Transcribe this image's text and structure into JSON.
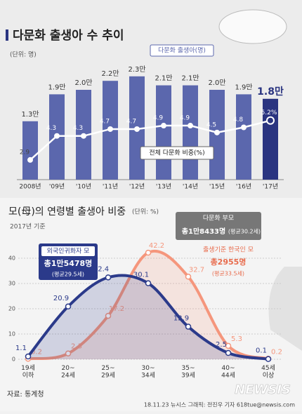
{
  "chart_data": [
    {
      "type": "bar",
      "title": "다문화 출생아 수 추이",
      "unit": "(단위: 명)",
      "categories": [
        "2008년",
        "'09년",
        "'10년",
        "'11년",
        "'12년",
        "'13년",
        "'14년",
        "'15년",
        "'16년",
        "'17년"
      ],
      "series": [
        {
          "name": "다문화 출생아(명)",
          "colors": [
            "#5b67ad",
            "#5b67ad",
            "#5b67ad",
            "#5b67ad",
            "#5b67ad",
            "#5b67ad",
            "#5b67ad",
            "#5b67ad",
            "#5b67ad",
            "#2a3480"
          ],
          "values": [
            13000,
            19000,
            20000,
            22000,
            23000,
            21000,
            21000,
            20000,
            19000,
            18000
          ],
          "value_labels": [
            "1.3만",
            "1.9만",
            "2.0만",
            "2.2만",
            "2.3만",
            "2.1만",
            "2.1만",
            "2.0만",
            "1.9만",
            "1.8만"
          ]
        },
        {
          "name": "전체 다문화 비중(%)",
          "type": "line",
          "axis": "y2",
          "color": "#ffffff",
          "values": [
            2.9,
            4.3,
            4.3,
            4.7,
            4.7,
            4.9,
            4.9,
            4.5,
            4.8,
            5.2
          ],
          "value_labels": [
            "2.9",
            "4.3",
            "4.3",
            "4.7",
            "4.7",
            "4.9",
            "4.9",
            "4.5",
            "4.8",
            "5.2%"
          ]
        }
      ],
      "ylim": [
        0,
        25000
      ],
      "y2lim": [
        1.75,
        8.3
      ]
    },
    {
      "type": "line",
      "title": "모(母)의 연령별 출생아 비중",
      "unit": "(단위: %)",
      "subtitle": "2017년 기준",
      "categories": [
        "19세\n이하",
        "20~\n24세",
        "25~\n29세",
        "30~\n34세",
        "35~\n39세",
        "40~\n44세",
        "45세\n이상"
      ],
      "series": [
        {
          "name": "외국인귀화자 모",
          "color": "#2b3a8a",
          "total": "총1만5478명",
          "average": "(평균29.5세)",
          "values": [
            1.1,
            20.9,
            32.4,
            30.1,
            12.9,
            2.5,
            0.1
          ]
        },
        {
          "name": "출생기준 한국인 모",
          "color": "#f5967c",
          "total": "총2955명",
          "average": "(평균33.5세)",
          "values": [
            0.2,
            2.3,
            17.2,
            42.2,
            32.7,
            5.3,
            0.2
          ]
        }
      ],
      "ylim": [
        0,
        45
      ],
      "yticks": [
        0,
        10,
        20,
        30,
        40
      ],
      "total_box": {
        "title": "다문화 부모",
        "total": "총1만8433명",
        "average": "(평균30.2세)"
      }
    }
  ],
  "source": "자료: 통계청",
  "credit": "18.11.23 뉴시스 그래픽: 전진우 기자 618tue@newsis.com",
  "logo": "NEWSIS"
}
